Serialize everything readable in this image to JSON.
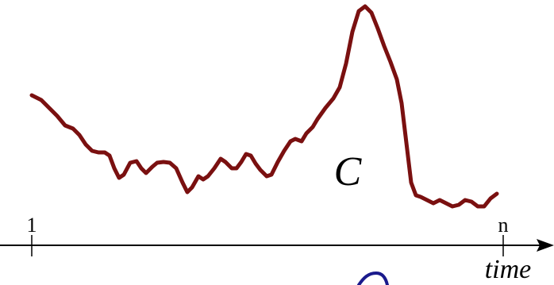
{
  "curve_label": "C",
  "axis": {
    "start_label": "1",
    "end_label": "n",
    "title": "time"
  }
}
